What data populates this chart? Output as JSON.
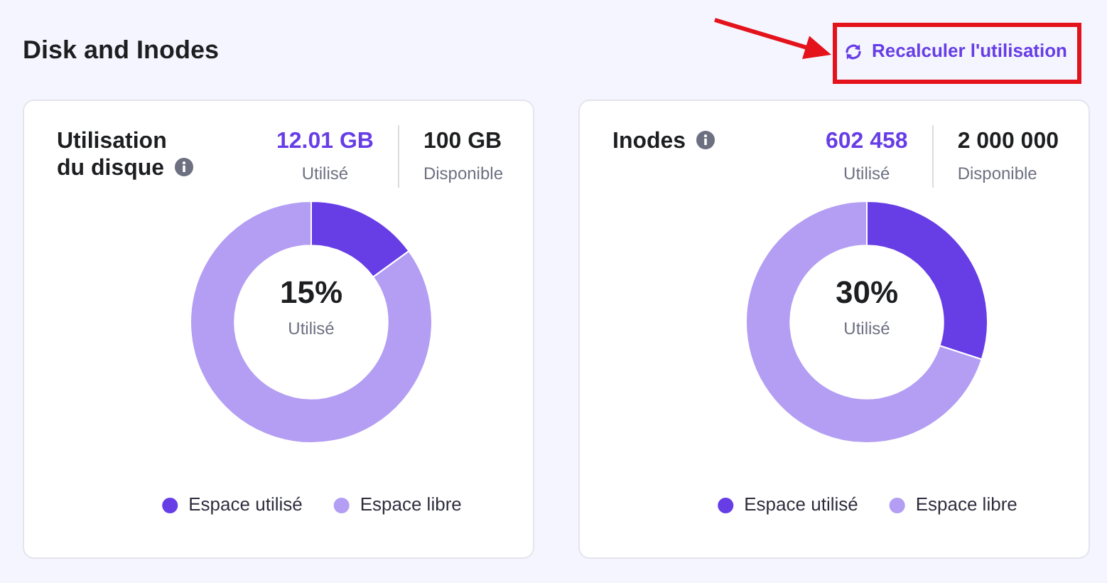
{
  "chart_data": [
    {
      "type": "donut",
      "title": "Utilisation du disque",
      "categories": [
        "Espace utilisé",
        "Espace libre"
      ],
      "values": [
        15,
        85
      ],
      "colors": [
        "#673de6",
        "#b39ef3"
      ],
      "legend": "bottom",
      "annotations": [
        "Disk and Inodes",
        "Recalculer l'utilisation",
        "12.01 GB",
        "Utilisé",
        "100 GB",
        "Disponible",
        "15%",
        "Utilisé"
      ]
    },
    {
      "type": "donut",
      "title": "Inodes",
      "categories": [
        "Espace utilisé",
        "Espace libre"
      ],
      "values": [
        30,
        70
      ],
      "colors": [
        "#673de6",
        "#b39ef3"
      ],
      "legend": "bottom",
      "annotations": [
        "602 458",
        "Utilisé",
        "2 000 000",
        "Disponible",
        "30%",
        "Utilisé"
      ]
    }
  ]
}
